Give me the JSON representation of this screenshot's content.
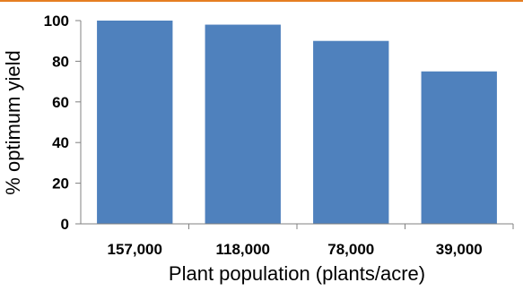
{
  "colors": {
    "bar": "#4f81bd",
    "axis": "#808080",
    "accent_rule": "#e67e22"
  },
  "chart_data": {
    "type": "bar",
    "title": "",
    "xlabel": "Plant population (plants/acre)",
    "ylabel": "% optimum yield",
    "categories": [
      "157,000",
      "118,000",
      "78,000",
      "39,000"
    ],
    "values": [
      100,
      98,
      90,
      75
    ],
    "ylim": [
      0,
      100
    ],
    "yticks": [
      "0",
      "20",
      "40",
      "60",
      "80",
      "100"
    ],
    "grid": false,
    "legend": "none"
  }
}
